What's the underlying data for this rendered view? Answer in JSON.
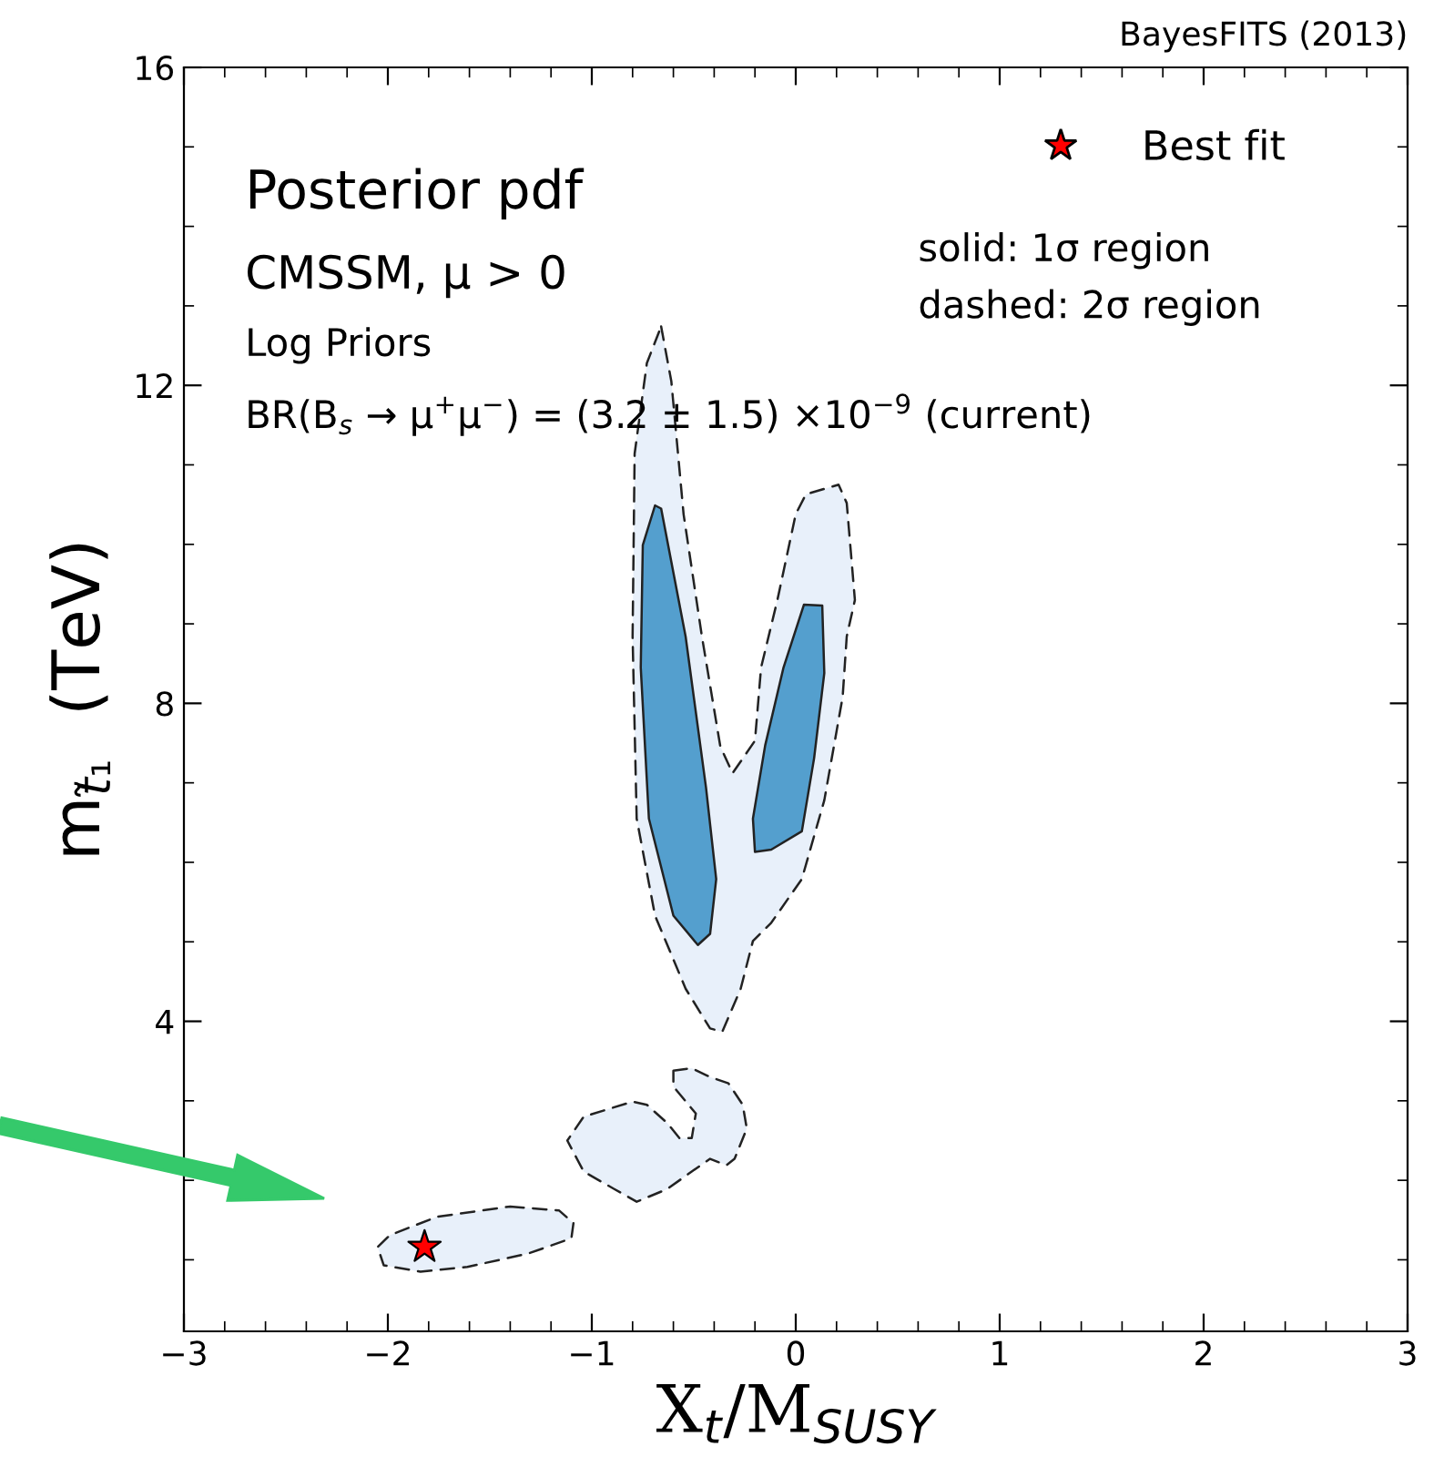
{
  "chart_data": {
    "type": "area",
    "xlabel": "X$_{t}$/M$_{SUSY}$",
    "ylabel": "m$_{t̃₁}$  (TeV)",
    "xlim": [
      -3,
      3
    ],
    "xticks": [
      -3,
      -2,
      -1,
      0,
      1,
      2,
      3
    ],
    "ylim": [
      0.1,
      16
    ],
    "yticks": [
      4,
      8,
      12,
      16
    ],
    "grid": false,
    "legend": "top right",
    "annotations": [
      "BayesFITS (2013)",
      "Posterior pdf",
      "CMSSM, μ > 0",
      "Log Priors",
      "BR(B$_{s}$ → μ$^{+}$μ$^{−}$) = (3.2 ± 1.5) ×10$^{−9}$ (current)",
      "solid: 1σ region",
      "dashed: 2σ region"
    ],
    "series": [
      {
        "color": "#e8f0fa",
        "line_style": "dashed",
        "x": [
          -0.66,
          -0.61,
          -0.55,
          -0.46,
          -0.37,
          -0.31,
          -0.2,
          -0.17,
          -0.09,
          0.0,
          0.05,
          0.21,
          0.25,
          0.29,
          0.25,
          0.23,
          0.14,
          0.03,
          -0.12,
          -0.21,
          -0.27,
          -0.36,
          -0.42,
          -0.54,
          -0.69,
          -0.78,
          -0.8,
          -0.79,
          -0.73,
          null,
          -0.6,
          -0.51,
          -0.42,
          -0.33,
          -0.26,
          -0.24,
          -0.3,
          -0.34,
          -0.42,
          -0.51,
          -0.63,
          -0.78,
          -0.89,
          -1.04,
          -1.12,
          -1.04,
          -0.8,
          -0.73,
          -0.63,
          -0.57,
          -0.51,
          -0.49,
          -0.6,
          null,
          -1.4,
          -1.16,
          -1.09,
          -1.1,
          -1.31,
          -1.61,
          -1.84,
          -2.02,
          -2.05,
          -1.99,
          -1.76
        ],
        "values": [
          12.74,
          12.05,
          10.38,
          8.84,
          7.46,
          7.12,
          7.53,
          8.45,
          9.3,
          10.38,
          10.63,
          10.75,
          10.52,
          9.3,
          8.84,
          8.08,
          6.78,
          5.79,
          5.24,
          5.01,
          4.41,
          3.87,
          3.91,
          4.41,
          5.33,
          6.55,
          8.84,
          11.14,
          12.28,
          null,
          3.38,
          3.41,
          3.3,
          3.22,
          2.95,
          2.65,
          2.27,
          2.19,
          2.27,
          2.11,
          1.89,
          1.73,
          1.89,
          2.11,
          2.5,
          2.8,
          2.99,
          2.95,
          2.72,
          2.53,
          2.53,
          2.84,
          3.18,
          null,
          1.67,
          1.62,
          1.46,
          1.27,
          1.08,
          0.91,
          0.85,
          0.93,
          1.16,
          1.31,
          1.54
        ]
      },
      {
        "color": "#549fce",
        "line_style": "solid",
        "x": [
          -0.69,
          -0.66,
          -0.54,
          -0.44,
          -0.39,
          -0.42,
          -0.48,
          -0.6,
          -0.72,
          -0.76,
          -0.75,
          null,
          0.04,
          0.13,
          0.14,
          0.09,
          0.03,
          -0.12,
          -0.2,
          -0.21,
          -0.15,
          -0.06
        ],
        "values": [
          10.49,
          10.45,
          8.84,
          6.94,
          5.79,
          5.1,
          4.96,
          5.33,
          6.55,
          8.45,
          9.99,
          null,
          9.24,
          9.23,
          8.38,
          7.31,
          6.39,
          6.16,
          6.13,
          6.55,
          7.47,
          8.45
        ]
      },
      {
        "type": "scatter",
        "name": "Best fit",
        "color": "#ff0000",
        "marker": "star",
        "x": [
          -1.82
        ],
        "values": [
          1.16
        ]
      }
    ]
  }
}
